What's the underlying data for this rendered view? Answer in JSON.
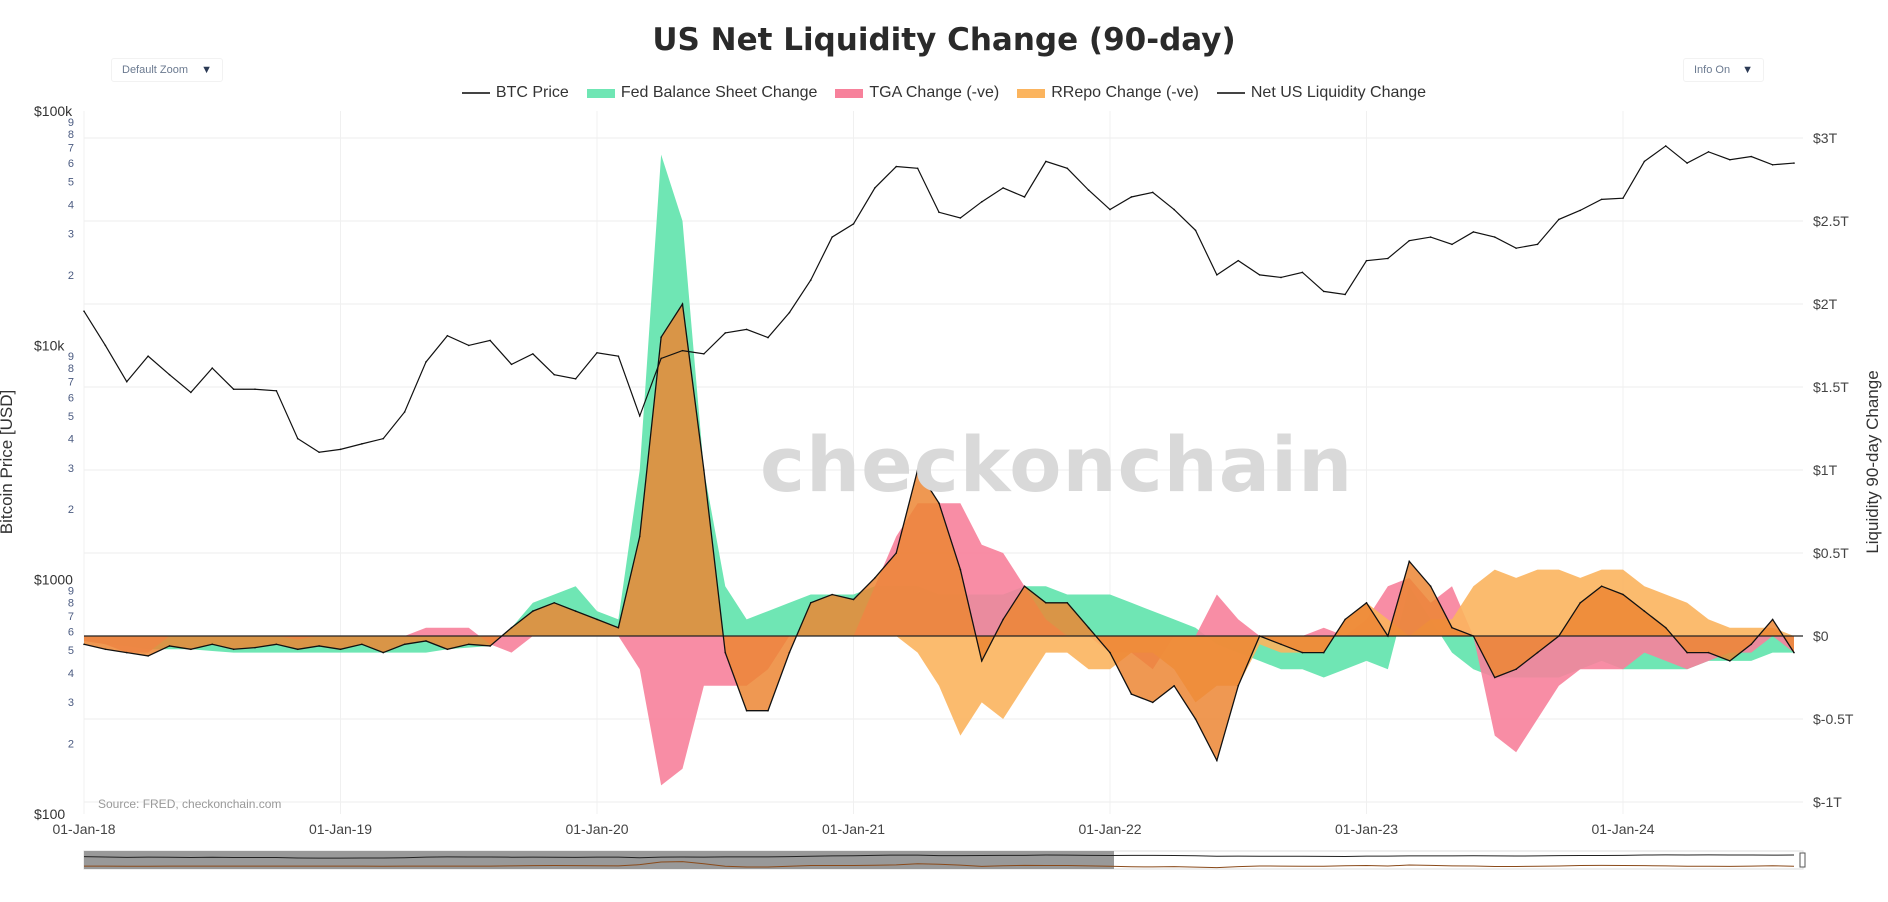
{
  "title": "US Net Liquidity Change (90-day)",
  "controls": {
    "zoom_select": "Default Zoom",
    "info_select": "Info On"
  },
  "legend": [
    {
      "label": "BTC Price",
      "color": "#444444",
      "kind": "line"
    },
    {
      "label": "Fed Balance Sheet Change",
      "color": "#6fe6b4",
      "kind": "fill"
    },
    {
      "label": "TGA Change (-ve)",
      "color": "#f7819b",
      "kind": "fill"
    },
    {
      "label": "RRepo Change (-ve)",
      "color": "#fbb45e",
      "kind": "fill"
    },
    {
      "label": "Net US Liquidity Change",
      "color": "#444444",
      "kind": "line"
    }
  ],
  "watermark": "checkonchain",
  "source": "Source: FRED, checkonchain.com",
  "chart_data": {
    "type": "line",
    "title": "US Net Liquidity Change (90-day)",
    "xlabel": "",
    "ylabel_left": "Bitcoin Price [USD]",
    "ylabel_right": "Liquidity 90-day Change",
    "y_left_scale": "log",
    "y_left_range": [
      100,
      100000
    ],
    "y_right_range": [
      -1,
      3
    ],
    "grid": true,
    "legend_position": "top",
    "x_tick_labels": [
      "01-Jan-18",
      "01-Jan-19",
      "01-Jan-20",
      "01-Jan-21",
      "01-Jan-22",
      "01-Jan-23",
      "01-Jan-24"
    ],
    "y_left_tick_labels": [
      "$100",
      "$1000",
      "$10k",
      "$100k"
    ],
    "y_left_minor_labels": [
      "2",
      "3",
      "4",
      "5",
      "6",
      "7",
      "8",
      "9"
    ],
    "y_right_tick_labels": [
      "$-1T",
      "$-0.5T",
      "$0",
      "$0.5T",
      "$1T",
      "$1.5T",
      "$2T",
      "$2.5T",
      "$3T"
    ],
    "y_right_tick_values": [
      -1,
      -0.5,
      0,
      0.5,
      1,
      1.5,
      2,
      2.5,
      3
    ],
    "x": [
      "2018-01",
      "2018-02",
      "2018-03",
      "2018-04",
      "2018-05",
      "2018-06",
      "2018-07",
      "2018-08",
      "2018-09",
      "2018-10",
      "2018-11",
      "2018-12",
      "2019-01",
      "2019-02",
      "2019-03",
      "2019-04",
      "2019-05",
      "2019-06",
      "2019-07",
      "2019-08",
      "2019-09",
      "2019-10",
      "2019-11",
      "2019-12",
      "2020-01",
      "2020-02",
      "2020-03",
      "2020-04",
      "2020-05",
      "2020-06",
      "2020-07",
      "2020-08",
      "2020-09",
      "2020-10",
      "2020-11",
      "2020-12",
      "2021-01",
      "2021-02",
      "2021-03",
      "2021-04",
      "2021-05",
      "2021-06",
      "2021-07",
      "2021-08",
      "2021-09",
      "2021-10",
      "2021-11",
      "2021-12",
      "2022-01",
      "2022-02",
      "2022-03",
      "2022-04",
      "2022-05",
      "2022-06",
      "2022-07",
      "2022-08",
      "2022-09",
      "2022-10",
      "2022-11",
      "2022-12",
      "2023-01",
      "2023-02",
      "2023-03",
      "2023-04",
      "2023-05",
      "2023-06",
      "2023-07",
      "2023-08",
      "2023-09",
      "2023-10",
      "2023-11",
      "2023-12",
      "2024-01",
      "2024-02",
      "2024-03",
      "2024-04",
      "2024-05",
      "2024-06",
      "2024-07",
      "2024-08",
      "2024-09"
    ],
    "series": [
      {
        "name": "BTC Price",
        "axis": "left",
        "color": "#222222",
        "values": [
          14000,
          10000,
          7000,
          9000,
          7500,
          6300,
          8000,
          6500,
          6500,
          6400,
          4000,
          3500,
          3600,
          3800,
          4000,
          5200,
          8500,
          11000,
          10000,
          10500,
          8300,
          9200,
          7500,
          7200,
          9300,
          9000,
          5000,
          8800,
          9500,
          9200,
          11300,
          11700,
          10800,
          13800,
          19000,
          29000,
          33000,
          47000,
          58000,
          57000,
          37000,
          35000,
          41000,
          47000,
          43000,
          61000,
          57000,
          46000,
          38000,
          43000,
          45000,
          38000,
          31000,
          20000,
          23000,
          20000,
          19500,
          20500,
          17000,
          16500,
          23000,
          23500,
          28000,
          29000,
          27000,
          30500,
          29000,
          26000,
          27000,
          34500,
          37700,
          42000,
          42500,
          61000,
          71000,
          60000,
          67000,
          62000,
          64000,
          59000,
          60000
        ]
      },
      {
        "name": "Fed Balance Sheet Change",
        "axis": "right",
        "color": "#6fe6b4",
        "values": [
          -0.02,
          -0.05,
          -0.06,
          -0.08,
          -0.08,
          -0.08,
          -0.09,
          -0.1,
          -0.1,
          -0.1,
          -0.1,
          -0.1,
          -0.1,
          -0.1,
          -0.1,
          -0.1,
          -0.1,
          -0.08,
          -0.07,
          -0.06,
          0.05,
          0.2,
          0.25,
          0.3,
          0.15,
          0.1,
          1.0,
          2.9,
          2.5,
          1.0,
          0.3,
          0.1,
          0.15,
          0.2,
          0.25,
          0.25,
          0.25,
          0.3,
          0.3,
          0.3,
          0.25,
          0.25,
          0.25,
          0.25,
          0.3,
          0.3,
          0.25,
          0.25,
          0.25,
          0.2,
          0.15,
          0.1,
          0.05,
          -0.05,
          -0.1,
          -0.15,
          -0.2,
          -0.2,
          -0.25,
          -0.2,
          -0.15,
          -0.2,
          0.3,
          0.1,
          -0.1,
          -0.2,
          -0.25,
          -0.25,
          -0.25,
          -0.25,
          -0.2,
          -0.15,
          -0.2,
          -0.2,
          -0.2,
          -0.2,
          -0.15,
          -0.15,
          -0.15,
          -0.1,
          -0.1
        ]
      },
      {
        "name": "TGA Change (-ve)",
        "axis": "right",
        "color": "#f7819b",
        "values": [
          -0.03,
          -0.05,
          -0.1,
          -0.1,
          0,
          0,
          0,
          0,
          0,
          0,
          -0.02,
          0,
          0,
          0,
          0,
          0,
          0.05,
          0.05,
          0.05,
          -0.05,
          -0.1,
          0,
          0,
          0,
          0,
          0,
          -0.2,
          -0.9,
          -0.8,
          -0.3,
          -0.3,
          -0.3,
          -0.2,
          0,
          0,
          0,
          0,
          0.3,
          0.6,
          0.8,
          0.8,
          0.8,
          0.55,
          0.5,
          0.3,
          0.1,
          0,
          0,
          -0.1,
          -0.1,
          -0.2,
          0,
          0,
          0.25,
          0.1,
          0,
          0,
          0,
          0.05,
          0,
          0.1,
          0.3,
          0.35,
          0.2,
          0.3,
          0,
          -0.6,
          -0.7,
          -0.5,
          -0.3,
          -0.2,
          -0.2,
          -0.2,
          -0.1,
          -0.15,
          -0.2,
          -0.15,
          -0.1,
          -0.1,
          0,
          -0.1
        ]
      },
      {
        "name": "RRepo Change (-ve)",
        "axis": "right",
        "color": "#fbb45e",
        "values": [
          0,
          0,
          0,
          0,
          0,
          0,
          0,
          0,
          0,
          0,
          0,
          0,
          0,
          0,
          0,
          0,
          0,
          0,
          0,
          0,
          0,
          0,
          0,
          0,
          0,
          0,
          0,
          0,
          0,
          0,
          0,
          0,
          0,
          0,
          0,
          0,
          0,
          0,
          0,
          -0.1,
          -0.3,
          -0.6,
          -0.4,
          -0.5,
          -0.3,
          -0.1,
          -0.1,
          -0.2,
          -0.2,
          -0.1,
          -0.1,
          -0.2,
          -0.4,
          -0.3,
          -0.3,
          -0.05,
          -0.1,
          -0.1,
          -0.1,
          0.1,
          0.2,
          0.1,
          0,
          0.1,
          0.1,
          0.3,
          0.4,
          0.35,
          0.4,
          0.4,
          0.35,
          0.4,
          0.4,
          0.3,
          0.25,
          0.2,
          0.1,
          0.05,
          0.05,
          0.05,
          0
        ]
      },
      {
        "name": "Net US Liquidity Change",
        "axis": "right",
        "color": "#111111",
        "values": [
          -0.05,
          -0.08,
          -0.1,
          -0.12,
          -0.06,
          -0.08,
          -0.05,
          -0.08,
          -0.07,
          -0.05,
          -0.08,
          -0.06,
          -0.08,
          -0.05,
          -0.1,
          -0.05,
          -0.03,
          -0.08,
          -0.05,
          -0.06,
          0.05,
          0.15,
          0.2,
          0.15,
          0.1,
          0.05,
          0.6,
          1.8,
          2.0,
          1.0,
          -0.1,
          -0.45,
          -0.45,
          -0.1,
          0.2,
          0.25,
          0.22,
          0.35,
          0.5,
          1.0,
          0.8,
          0.4,
          -0.15,
          0.1,
          0.3,
          0.2,
          0.2,
          0.05,
          -0.1,
          -0.35,
          -0.4,
          -0.3,
          -0.5,
          -0.75,
          -0.3,
          0,
          -0.05,
          -0.1,
          -0.1,
          0.1,
          0.2,
          0,
          0.45,
          0.3,
          0.05,
          0,
          -0.25,
          -0.2,
          -0.1,
          0,
          0.2,
          0.3,
          0.25,
          0.15,
          0.05,
          -0.1,
          -0.1,
          -0.15,
          -0.05,
          0.1,
          -0.1
        ]
      }
    ]
  }
}
